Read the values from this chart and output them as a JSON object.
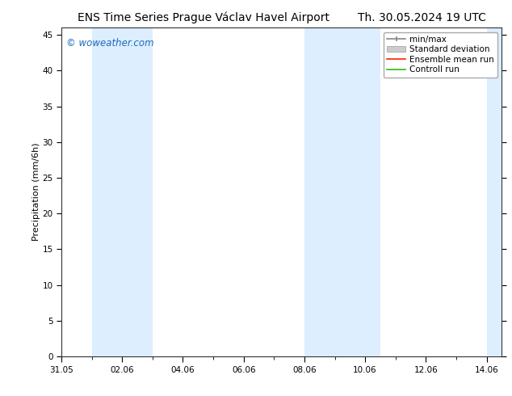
{
  "title_left": "ENS Time Series Prague Václav Havel Airport",
  "title_right": "Th. 30.05.2024 19 UTC",
  "ylabel": "Precipitation (mm/6h)",
  "watermark": "© woweather.com",
  "watermark_color": "#1a6bbf",
  "background_color": "#ffffff",
  "plot_bg_color": "#ffffff",
  "ylim": [
    0,
    46
  ],
  "yticks": [
    0,
    5,
    10,
    15,
    20,
    25,
    30,
    35,
    40,
    45
  ],
  "xlim": [
    0,
    14.5
  ],
  "x_tick_labels": [
    "31.05",
    "02.06",
    "04.06",
    "06.06",
    "08.06",
    "10.06",
    "12.06",
    "14.06"
  ],
  "x_tick_positions": [
    0,
    2,
    4,
    6,
    8,
    10,
    12,
    14
  ],
  "shaded_bands": [
    {
      "x_start": 1.0,
      "x_end": 3.0,
      "color": "#ddeeff"
    },
    {
      "x_start": 8.0,
      "x_end": 9.0,
      "color": "#ddeeff"
    },
    {
      "x_start": 9.0,
      "x_end": 10.5,
      "color": "#ddeeff"
    },
    {
      "x_start": 14.0,
      "x_end": 14.5,
      "color": "#ddeeff"
    }
  ],
  "legend_items": [
    {
      "label": "min/max",
      "color": "#aaaaaa",
      "style": "errorbar"
    },
    {
      "label": "Standard deviation",
      "color": "#cccccc",
      "style": "bar"
    },
    {
      "label": "Ensemble mean run",
      "color": "#ff0000",
      "style": "line"
    },
    {
      "label": "Controll run",
      "color": "#00aa00",
      "style": "line"
    }
  ],
  "title_fontsize": 10,
  "axis_label_fontsize": 8,
  "tick_fontsize": 7.5,
  "legend_fontsize": 7.5
}
